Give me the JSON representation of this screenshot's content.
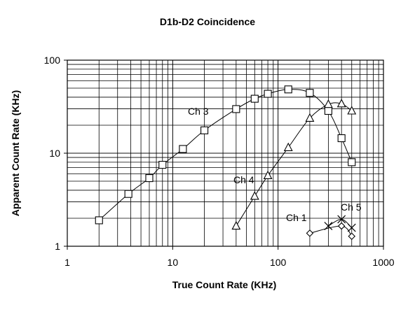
{
  "chart_data": {
    "type": "scatter",
    "title": "D1b-D2 Coincidence",
    "xlabel": "True Count Rate (KHz)",
    "ylabel": "Apparent Count Rate (KHz)",
    "xscale": "log",
    "yscale": "log",
    "xlim": [
      1,
      1000
    ],
    "ylim": [
      1,
      100
    ],
    "xticks": [
      "1",
      "10",
      "100",
      "1000"
    ],
    "yticks": [
      "1",
      "10",
      "100"
    ],
    "grid": true,
    "legend": "none",
    "series": [
      {
        "name": "Ch 3",
        "marker": "square",
        "x": [
          2,
          3.8,
          6,
          8,
          12.5,
          20,
          40,
          60,
          80,
          125,
          200,
          300,
          400,
          500
        ],
        "y": [
          1.9,
          3.65,
          5.4,
          7.5,
          11.1,
          17.6,
          29.8,
          38.5,
          43.5,
          48.5,
          44.5,
          28.5,
          14.5,
          8.0
        ]
      },
      {
        "name": "Ch 4",
        "marker": "triangle",
        "x": [
          40,
          60,
          80,
          125,
          200,
          300,
          400,
          500
        ],
        "y": [
          1.65,
          3.45,
          5.75,
          11.5,
          23.8,
          33.5,
          34.0,
          28.5
        ]
      },
      {
        "name": "Ch 1",
        "marker": "diamond",
        "x": [
          200,
          400,
          500
        ],
        "y": [
          1.38,
          1.65,
          1.28
        ]
      },
      {
        "name": "Ch 5",
        "marker": "x",
        "x": [
          300,
          400,
          500
        ],
        "y": [
          1.65,
          1.95,
          1.58
        ]
      }
    ]
  }
}
